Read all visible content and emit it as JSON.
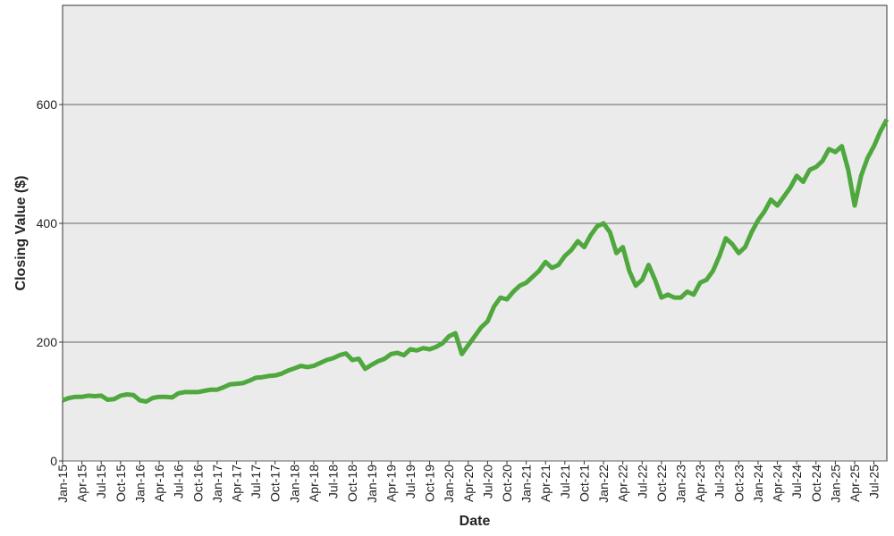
{
  "chart_data": {
    "type": "line",
    "xlabel": "Date",
    "ylabel": "Closing Value ($)",
    "x": [
      "2015-01",
      "2015-02",
      "2015-03",
      "2015-04",
      "2015-05",
      "2015-06",
      "2015-07",
      "2015-08",
      "2015-09",
      "2015-10",
      "2015-11",
      "2015-12",
      "2016-01",
      "2016-02",
      "2016-03",
      "2016-04",
      "2016-05",
      "2016-06",
      "2016-07",
      "2016-08",
      "2016-09",
      "2016-10",
      "2016-11",
      "2016-12",
      "2017-01",
      "2017-02",
      "2017-03",
      "2017-04",
      "2017-05",
      "2017-06",
      "2017-07",
      "2017-08",
      "2017-09",
      "2017-10",
      "2017-11",
      "2017-12",
      "2018-01",
      "2018-02",
      "2018-03",
      "2018-04",
      "2018-05",
      "2018-06",
      "2018-07",
      "2018-08",
      "2018-09",
      "2018-10",
      "2018-11",
      "2018-12",
      "2019-01",
      "2019-02",
      "2019-03",
      "2019-04",
      "2019-05",
      "2019-06",
      "2019-07",
      "2019-08",
      "2019-09",
      "2019-10",
      "2019-11",
      "2019-12",
      "2020-01",
      "2020-02",
      "2020-03",
      "2020-04",
      "2020-05",
      "2020-06",
      "2020-07",
      "2020-08",
      "2020-09",
      "2020-10",
      "2020-11",
      "2020-12",
      "2021-01",
      "2021-02",
      "2021-03",
      "2021-04",
      "2021-05",
      "2021-06",
      "2021-07",
      "2021-08",
      "2021-09",
      "2021-10",
      "2021-11",
      "2021-12",
      "2022-01",
      "2022-02",
      "2022-03",
      "2022-04",
      "2022-05",
      "2022-06",
      "2022-07",
      "2022-08",
      "2022-09",
      "2022-10",
      "2022-11",
      "2022-12",
      "2023-01",
      "2023-02",
      "2023-03",
      "2023-04",
      "2023-05",
      "2023-06",
      "2023-07",
      "2023-08",
      "2023-09",
      "2023-10",
      "2023-11",
      "2023-12",
      "2024-01",
      "2024-02",
      "2024-03",
      "2024-04",
      "2024-05",
      "2024-06",
      "2024-07",
      "2024-08",
      "2024-09",
      "2024-10",
      "2024-11",
      "2024-12",
      "2025-01",
      "2025-02",
      "2025-03",
      "2025-04",
      "2025-05",
      "2025-06",
      "2025-07",
      "2025-08",
      "2025-09"
    ],
    "values": [
      102,
      106,
      108,
      108,
      110,
      109,
      110,
      103,
      104,
      110,
      112,
      111,
      102,
      100,
      106,
      108,
      108,
      107,
      114,
      116,
      116,
      116,
      118,
      120,
      120,
      124,
      129,
      130,
      131,
      135,
      140,
      141,
      143,
      144,
      147,
      152,
      156,
      160,
      158,
      160,
      165,
      170,
      173,
      178,
      181,
      170,
      172,
      155,
      162,
      168,
      172,
      180,
      182,
      178,
      188,
      186,
      190,
      188,
      192,
      198,
      210,
      215,
      180,
      195,
      210,
      225,
      235,
      260,
      275,
      272,
      285,
      295,
      300,
      310,
      320,
      335,
      325,
      330,
      345,
      355,
      370,
      360,
      380,
      395,
      400,
      385,
      350,
      360,
      320,
      295,
      305,
      330,
      305,
      275,
      280,
      275,
      275,
      285,
      280,
      300,
      305,
      320,
      345,
      375,
      365,
      350,
      360,
      385,
      405,
      420,
      440,
      430,
      445,
      460,
      480,
      470,
      490,
      495,
      505,
      525,
      520,
      530,
      490,
      430,
      480,
      510,
      530,
      555,
      575
    ],
    "color": "#4fa83d",
    "xlim": [
      "2015-01",
      "2025-09"
    ],
    "xticks": [
      {
        "value": "2015-01",
        "label": "Jan-15"
      },
      {
        "value": "2015-04",
        "label": "Apr-15"
      },
      {
        "value": "2015-07",
        "label": "Jul-15"
      },
      {
        "value": "2015-10",
        "label": "Oct-15"
      },
      {
        "value": "2016-01",
        "label": "Jan-16"
      },
      {
        "value": "2016-04",
        "label": "Apr-16"
      },
      {
        "value": "2016-07",
        "label": "Jul-16"
      },
      {
        "value": "2016-10",
        "label": "Oct-16"
      },
      {
        "value": "2017-01",
        "label": "Jan-17"
      },
      {
        "value": "2017-04",
        "label": "Apr-17"
      },
      {
        "value": "2017-07",
        "label": "Jul-17"
      },
      {
        "value": "2017-10",
        "label": "Oct-17"
      },
      {
        "value": "2018-01",
        "label": "Jan-18"
      },
      {
        "value": "2018-04",
        "label": "Apr-18"
      },
      {
        "value": "2018-07",
        "label": "Jul-18"
      },
      {
        "value": "2018-10",
        "label": "Oct-18"
      },
      {
        "value": "2019-01",
        "label": "Jan-19"
      },
      {
        "value": "2019-04",
        "label": "Apr-19"
      },
      {
        "value": "2019-07",
        "label": "Jul-19"
      },
      {
        "value": "2019-10",
        "label": "Oct-19"
      },
      {
        "value": "2020-01",
        "label": "Jan-20"
      },
      {
        "value": "2020-04",
        "label": "Apr-20"
      },
      {
        "value": "2020-07",
        "label": "Jul-20"
      },
      {
        "value": "2020-10",
        "label": "Oct-20"
      },
      {
        "value": "2021-01",
        "label": "Jan-21"
      },
      {
        "value": "2021-04",
        "label": "Apr-21"
      },
      {
        "value": "2021-07",
        "label": "Jul-21"
      },
      {
        "value": "2021-10",
        "label": "Oct-21"
      },
      {
        "value": "2022-01",
        "label": "Jan-22"
      },
      {
        "value": "2022-04",
        "label": "Apr-22"
      },
      {
        "value": "2022-07",
        "label": "Jul-22"
      },
      {
        "value": "2022-10",
        "label": "Oct-22"
      },
      {
        "value": "2023-01",
        "label": "Jan-23"
      },
      {
        "value": "2023-04",
        "label": "Apr-23"
      },
      {
        "value": "2023-07",
        "label": "Jul-23"
      },
      {
        "value": "2023-10",
        "label": "Oct-23"
      },
      {
        "value": "2024-01",
        "label": "Jan-24"
      },
      {
        "value": "2024-04",
        "label": "Apr-24"
      },
      {
        "value": "2024-07",
        "label": "Jul-24"
      },
      {
        "value": "2024-10",
        "label": "Oct-24"
      },
      {
        "value": "2025-01",
        "label": "Jan-25"
      },
      {
        "value": "2025-04",
        "label": "Apr-25"
      },
      {
        "value": "2025-07",
        "label": "Jul-25"
      }
    ],
    "ylim": [
      0,
      767
    ],
    "yticks": [
      0,
      200,
      400,
      600
    ],
    "grid": true
  }
}
